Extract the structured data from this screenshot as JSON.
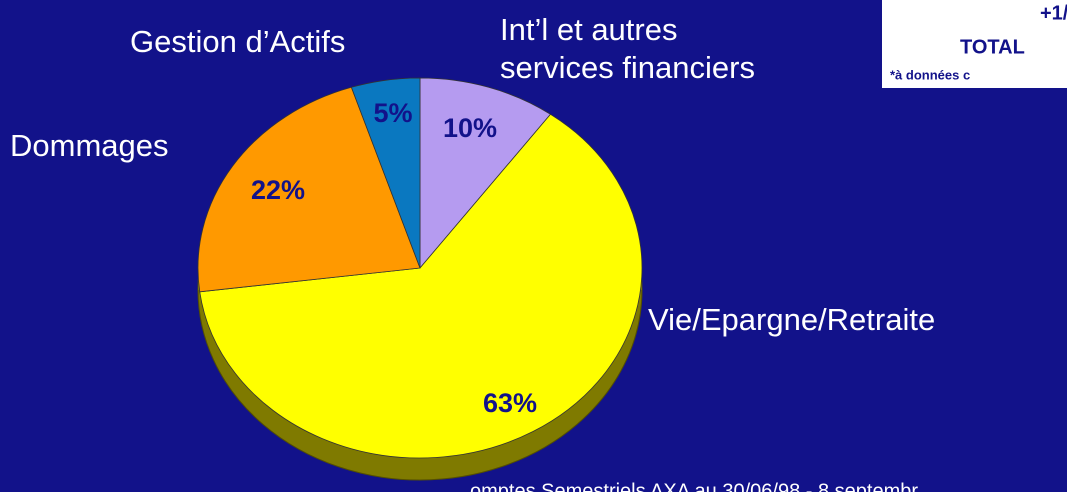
{
  "chart_data": {
    "type": "pie",
    "categories": [
      "Int’l et autres services financiers",
      "Vie/Epargne/Retraite",
      "Dommages",
      "Gestion d’Actifs"
    ],
    "category_lines": [
      [
        "Int’l et autres",
        "services financiers"
      ],
      [
        "Vie/Epargne/Retraite"
      ],
      [
        "Dommages"
      ],
      [
        "Gestion d’Actifs"
      ]
    ],
    "values": [
      10,
      63,
      22,
      5
    ],
    "value_labels": [
      "10%",
      "63%",
      "22%",
      "5%"
    ],
    "colors": [
      "#b59bf0",
      "#ffff00",
      "#ff9900",
      "#0a78c0"
    ]
  },
  "info_box": {
    "lines": [
      "+1/",
      "TOTAL",
      "*à données c"
    ]
  },
  "footer": "omptes Semestriels AXA au 30/06/98 - 8 septembr"
}
